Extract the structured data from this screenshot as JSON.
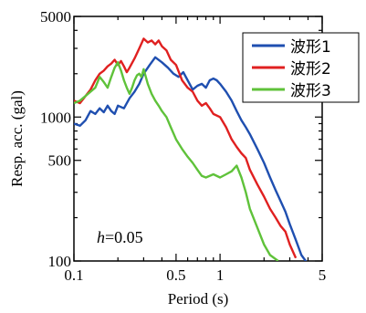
{
  "chart_data": {
    "type": "line",
    "title": "",
    "xlabel": "Period (s)",
    "ylabel": "Resp. acc. (gal)",
    "x_scale": "log",
    "y_scale": "log",
    "xlim": [
      0.1,
      5
    ],
    "ylim": [
      100,
      5000
    ],
    "x_ticks": [
      {
        "value": 0.1,
        "label": "0.1"
      },
      {
        "value": 0.5,
        "label": "0.5"
      },
      {
        "value": 1,
        "label": "1"
      },
      {
        "value": 5,
        "label": "5"
      }
    ],
    "y_ticks": [
      {
        "value": 100,
        "label": "100"
      },
      {
        "value": 500,
        "label": "500"
      },
      {
        "value": 1000,
        "label": "1000"
      },
      {
        "value": 5000,
        "label": "5000"
      }
    ],
    "annotation": {
      "italic": "h",
      "rest": "=0.05"
    },
    "legend_position": "top-right",
    "grid": false,
    "series": [
      {
        "name": "波形1",
        "color": "#1f4fb0",
        "x": [
          0.1,
          0.11,
          0.12,
          0.13,
          0.14,
          0.15,
          0.16,
          0.17,
          0.18,
          0.19,
          0.2,
          0.22,
          0.24,
          0.26,
          0.28,
          0.3,
          0.33,
          0.36,
          0.4,
          0.44,
          0.48,
          0.52,
          0.56,
          0.6,
          0.65,
          0.7,
          0.75,
          0.8,
          0.85,
          0.9,
          0.95,
          1.0,
          1.1,
          1.2,
          1.3,
          1.4,
          1.5,
          1.6,
          1.8,
          2.0,
          2.2,
          2.4,
          2.6,
          2.8,
          3.0,
          3.3,
          3.6,
          4.0
        ],
        "y": [
          900,
          870,
          950,
          1100,
          1050,
          1150,
          1080,
          1200,
          1100,
          1050,
          1200,
          1150,
          1350,
          1500,
          1700,
          2000,
          2300,
          2600,
          2400,
          2200,
          2000,
          1900,
          2050,
          1800,
          1550,
          1650,
          1700,
          1600,
          1800,
          1850,
          1800,
          1700,
          1500,
          1300,
          1100,
          950,
          850,
          760,
          600,
          480,
          380,
          310,
          260,
          220,
          180,
          140,
          110,
          95
        ]
      },
      {
        "name": "波形2",
        "color": "#e02020",
        "x": [
          0.1,
          0.11,
          0.12,
          0.13,
          0.14,
          0.15,
          0.16,
          0.17,
          0.18,
          0.19,
          0.2,
          0.21,
          0.22,
          0.23,
          0.24,
          0.26,
          0.28,
          0.3,
          0.32,
          0.34,
          0.36,
          0.38,
          0.4,
          0.43,
          0.46,
          0.5,
          0.55,
          0.6,
          0.65,
          0.7,
          0.75,
          0.8,
          0.85,
          0.9,
          1.0,
          1.1,
          1.2,
          1.3,
          1.4,
          1.5,
          1.6,
          1.8,
          2.0,
          2.2,
          2.4,
          2.6,
          2.8,
          3.0,
          3.3
        ],
        "y": [
          1300,
          1250,
          1400,
          1550,
          1800,
          2000,
          2100,
          2250,
          2350,
          2500,
          2300,
          2450,
          2250,
          2050,
          2200,
          2550,
          3000,
          3500,
          3300,
          3400,
          3200,
          3400,
          3100,
          2900,
          2500,
          2300,
          1800,
          1600,
          1500,
          1300,
          1200,
          1250,
          1150,
          1050,
          1000,
          850,
          700,
          620,
          560,
          520,
          430,
          340,
          280,
          230,
          200,
          175,
          160,
          130,
          105
        ]
      },
      {
        "name": "波形3",
        "color": "#5fc23a",
        "x": [
          0.1,
          0.11,
          0.12,
          0.13,
          0.14,
          0.15,
          0.16,
          0.17,
          0.18,
          0.19,
          0.2,
          0.21,
          0.22,
          0.23,
          0.24,
          0.25,
          0.26,
          0.27,
          0.28,
          0.29,
          0.3,
          0.32,
          0.34,
          0.36,
          0.38,
          0.4,
          0.43,
          0.46,
          0.5,
          0.55,
          0.6,
          0.65,
          0.7,
          0.75,
          0.8,
          0.9,
          1.0,
          1.1,
          1.2,
          1.3,
          1.4,
          1.5,
          1.6,
          1.8,
          2.0,
          2.2,
          2.5
        ],
        "y": [
          1250,
          1300,
          1400,
          1500,
          1600,
          1900,
          1750,
          1600,
          1900,
          2200,
          2400,
          2100,
          1800,
          1600,
          1450,
          1600,
          1800,
          1950,
          2000,
          1900,
          2150,
          1700,
          1450,
          1300,
          1200,
          1100,
          1000,
          850,
          700,
          600,
          530,
          480,
          430,
          390,
          380,
          400,
          380,
          400,
          420,
          460,
          380,
          300,
          230,
          170,
          130,
          110,
          100
        ]
      }
    ]
  }
}
